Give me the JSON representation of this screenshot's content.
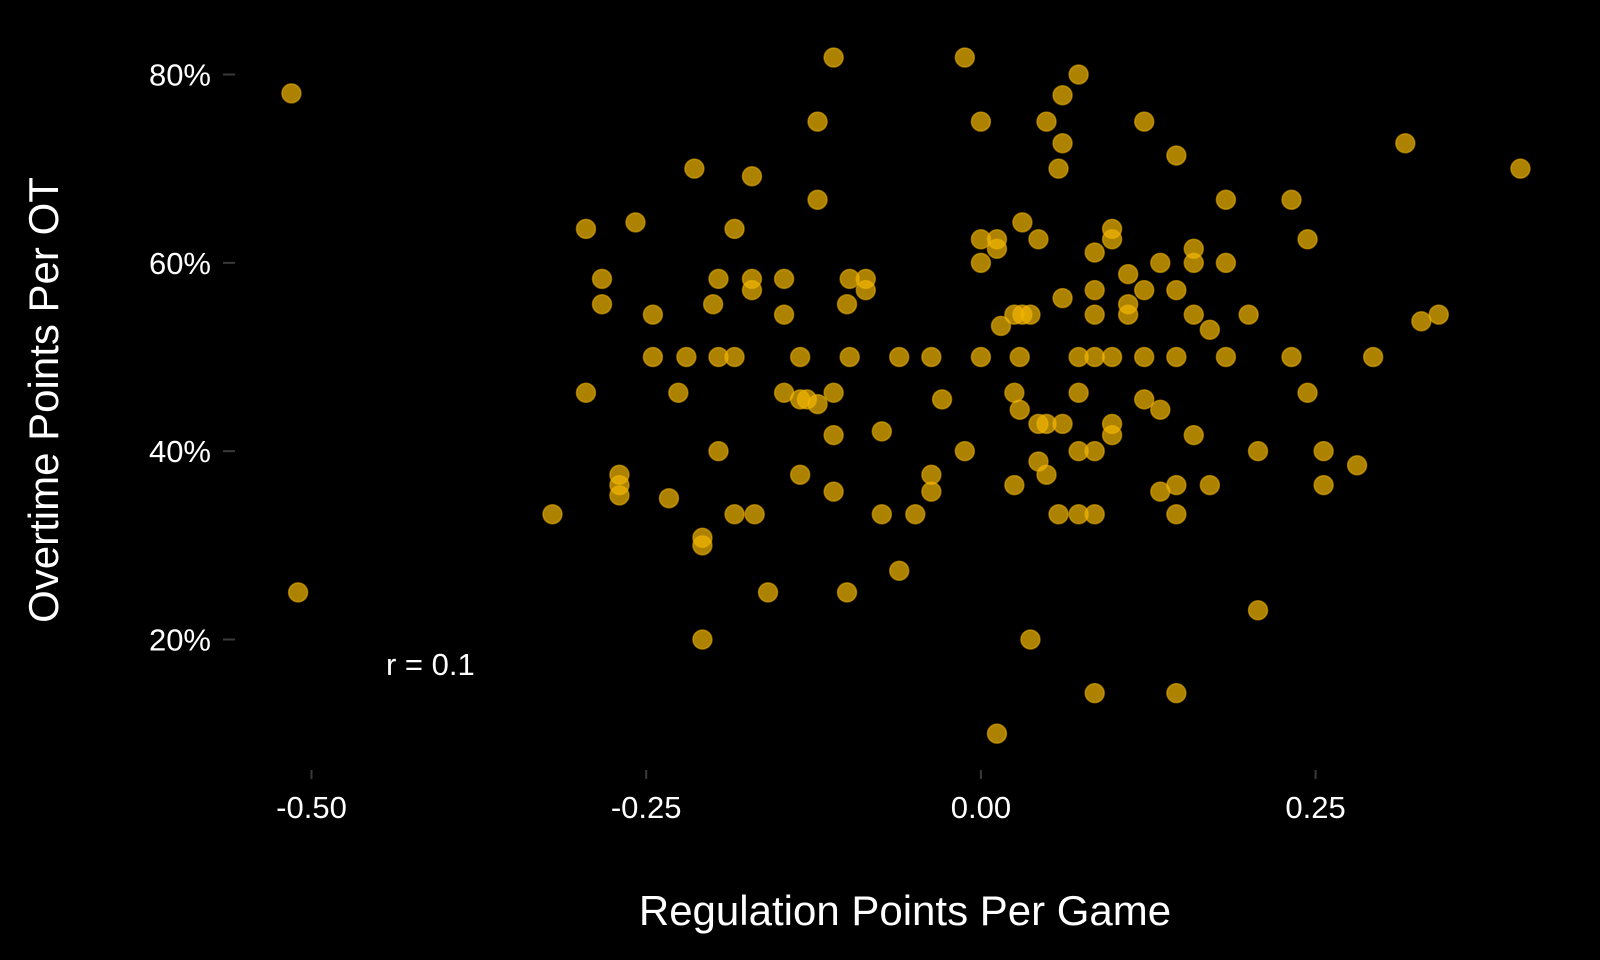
{
  "chart_data": {
    "type": "scatter",
    "xlabel": "Regulation Points Per Game",
    "ylabel": "Overtime Points Per OT",
    "xlim": [
      -0.55,
      0.45
    ],
    "ylim": [
      0.07,
      0.83
    ],
    "x_ticks": [
      -0.5,
      -0.25,
      0.0,
      0.25
    ],
    "x_tick_labels": [
      "-0.50",
      "-0.25",
      "0.00",
      "0.25"
    ],
    "y_ticks": [
      0.2,
      0.4,
      0.6,
      0.8
    ],
    "y_tick_labels": [
      "20%",
      "40%",
      "60%",
      "80%"
    ],
    "annotation": "r =  0.1",
    "point_color": "#f0b400",
    "background": "#000000",
    "points": [
      {
        "x": -0.515,
        "y": 0.78
      },
      {
        "x": -0.51,
        "y": 0.25
      },
      {
        "x": -0.32,
        "y": 0.333
      },
      {
        "x": -0.295,
        "y": 0.636
      },
      {
        "x": -0.295,
        "y": 0.462
      },
      {
        "x": -0.283,
        "y": 0.583
      },
      {
        "x": -0.283,
        "y": 0.556
      },
      {
        "x": -0.258,
        "y": 0.643
      },
      {
        "x": -0.27,
        "y": 0.375
      },
      {
        "x": -0.27,
        "y": 0.364
      },
      {
        "x": -0.27,
        "y": 0.353
      },
      {
        "x": -0.245,
        "y": 0.545
      },
      {
        "x": -0.245,
        "y": 0.5
      },
      {
        "x": -0.233,
        "y": 0.35
      },
      {
        "x": -0.22,
        "y": 0.5
      },
      {
        "x": -0.226,
        "y": 0.462
      },
      {
        "x": -0.214,
        "y": 0.7
      },
      {
        "x": -0.208,
        "y": 0.308
      },
      {
        "x": -0.208,
        "y": 0.3
      },
      {
        "x": -0.208,
        "y": 0.2
      },
      {
        "x": -0.2,
        "y": 0.556
      },
      {
        "x": -0.196,
        "y": 0.583
      },
      {
        "x": -0.196,
        "y": 0.5
      },
      {
        "x": -0.196,
        "y": 0.4
      },
      {
        "x": -0.184,
        "y": 0.636
      },
      {
        "x": -0.184,
        "y": 0.5
      },
      {
        "x": -0.184,
        "y": 0.333
      },
      {
        "x": -0.171,
        "y": 0.692
      },
      {
        "x": -0.171,
        "y": 0.583
      },
      {
        "x": -0.171,
        "y": 0.571
      },
      {
        "x": -0.169,
        "y": 0.333
      },
      {
        "x": -0.159,
        "y": 0.25
      },
      {
        "x": -0.147,
        "y": 0.583
      },
      {
        "x": -0.147,
        "y": 0.545
      },
      {
        "x": -0.147,
        "y": 0.462
      },
      {
        "x": -0.135,
        "y": 0.5
      },
      {
        "x": -0.135,
        "y": 0.455
      },
      {
        "x": -0.135,
        "y": 0.375
      },
      {
        "x": -0.13,
        "y": 0.455
      },
      {
        "x": -0.122,
        "y": 0.75
      },
      {
        "x": -0.122,
        "y": 0.667
      },
      {
        "x": -0.122,
        "y": 0.45
      },
      {
        "x": -0.11,
        "y": 0.818
      },
      {
        "x": -0.11,
        "y": 0.462
      },
      {
        "x": -0.11,
        "y": 0.417
      },
      {
        "x": -0.11,
        "y": 0.357
      },
      {
        "x": -0.1,
        "y": 0.556
      },
      {
        "x": -0.1,
        "y": 0.25
      },
      {
        "x": -0.098,
        "y": 0.583
      },
      {
        "x": -0.098,
        "y": 0.5
      },
      {
        "x": -0.086,
        "y": 0.583
      },
      {
        "x": -0.086,
        "y": 0.571
      },
      {
        "x": -0.074,
        "y": 0.421
      },
      {
        "x": -0.074,
        "y": 0.333
      },
      {
        "x": -0.061,
        "y": 0.5
      },
      {
        "x": -0.061,
        "y": 0.273
      },
      {
        "x": -0.049,
        "y": 0.333
      },
      {
        "x": -0.037,
        "y": 0.5
      },
      {
        "x": -0.037,
        "y": 0.375
      },
      {
        "x": -0.037,
        "y": 0.357
      },
      {
        "x": -0.029,
        "y": 0.455
      },
      {
        "x": -0.012,
        "y": 0.818
      },
      {
        "x": -0.012,
        "y": 0.4
      },
      {
        "x": 0.0,
        "y": 0.75
      },
      {
        "x": 0.0,
        "y": 0.625
      },
      {
        "x": 0.0,
        "y": 0.6
      },
      {
        "x": 0.0,
        "y": 0.5
      },
      {
        "x": 0.012,
        "y": 0.625
      },
      {
        "x": 0.012,
        "y": 0.615
      },
      {
        "x": 0.012,
        "y": 0.1
      },
      {
        "x": 0.015,
        "y": 0.533
      },
      {
        "x": 0.025,
        "y": 0.545
      },
      {
        "x": 0.025,
        "y": 0.462
      },
      {
        "x": 0.025,
        "y": 0.364
      },
      {
        "x": 0.029,
        "y": 0.5
      },
      {
        "x": 0.029,
        "y": 0.444
      },
      {
        "x": 0.031,
        "y": 0.643
      },
      {
        "x": 0.031,
        "y": 0.545
      },
      {
        "x": 0.037,
        "y": 0.545
      },
      {
        "x": 0.037,
        "y": 0.2
      },
      {
        "x": 0.043,
        "y": 0.625
      },
      {
        "x": 0.043,
        "y": 0.429
      },
      {
        "x": 0.043,
        "y": 0.389
      },
      {
        "x": 0.049,
        "y": 0.75
      },
      {
        "x": 0.049,
        "y": 0.429
      },
      {
        "x": 0.049,
        "y": 0.375
      },
      {
        "x": 0.058,
        "y": 0.7
      },
      {
        "x": 0.058,
        "y": 0.333
      },
      {
        "x": 0.061,
        "y": 0.778
      },
      {
        "x": 0.061,
        "y": 0.727
      },
      {
        "x": 0.061,
        "y": 0.5625
      },
      {
        "x": 0.061,
        "y": 0.429
      },
      {
        "x": 0.073,
        "y": 0.8
      },
      {
        "x": 0.073,
        "y": 0.5
      },
      {
        "x": 0.073,
        "y": 0.462
      },
      {
        "x": 0.073,
        "y": 0.4
      },
      {
        "x": 0.073,
        "y": 0.333
      },
      {
        "x": 0.085,
        "y": 0.611
      },
      {
        "x": 0.085,
        "y": 0.571
      },
      {
        "x": 0.085,
        "y": 0.545
      },
      {
        "x": 0.085,
        "y": 0.5
      },
      {
        "x": 0.085,
        "y": 0.4
      },
      {
        "x": 0.085,
        "y": 0.333
      },
      {
        "x": 0.085,
        "y": 0.143
      },
      {
        "x": 0.098,
        "y": 0.636
      },
      {
        "x": 0.098,
        "y": 0.625
      },
      {
        "x": 0.098,
        "y": 0.5
      },
      {
        "x": 0.098,
        "y": 0.429
      },
      {
        "x": 0.098,
        "y": 0.417
      },
      {
        "x": 0.11,
        "y": 0.588
      },
      {
        "x": 0.11,
        "y": 0.556
      },
      {
        "x": 0.11,
        "y": 0.545
      },
      {
        "x": 0.122,
        "y": 0.75
      },
      {
        "x": 0.122,
        "y": 0.571
      },
      {
        "x": 0.122,
        "y": 0.5
      },
      {
        "x": 0.122,
        "y": 0.455
      },
      {
        "x": 0.134,
        "y": 0.6
      },
      {
        "x": 0.134,
        "y": 0.444
      },
      {
        "x": 0.134,
        "y": 0.357
      },
      {
        "x": 0.146,
        "y": 0.714
      },
      {
        "x": 0.146,
        "y": 0.571
      },
      {
        "x": 0.146,
        "y": 0.5
      },
      {
        "x": 0.146,
        "y": 0.364
      },
      {
        "x": 0.146,
        "y": 0.333
      },
      {
        "x": 0.146,
        "y": 0.143
      },
      {
        "x": 0.159,
        "y": 0.615
      },
      {
        "x": 0.159,
        "y": 0.6
      },
      {
        "x": 0.159,
        "y": 0.545
      },
      {
        "x": 0.159,
        "y": 0.417
      },
      {
        "x": 0.171,
        "y": 0.529
      },
      {
        "x": 0.171,
        "y": 0.364
      },
      {
        "x": 0.183,
        "y": 0.667
      },
      {
        "x": 0.183,
        "y": 0.6
      },
      {
        "x": 0.183,
        "y": 0.5
      },
      {
        "x": 0.2,
        "y": 0.545
      },
      {
        "x": 0.207,
        "y": 0.4
      },
      {
        "x": 0.207,
        "y": 0.231
      },
      {
        "x": 0.232,
        "y": 0.667
      },
      {
        "x": 0.232,
        "y": 0.5
      },
      {
        "x": 0.244,
        "y": 0.625
      },
      {
        "x": 0.244,
        "y": 0.462
      },
      {
        "x": 0.256,
        "y": 0.4
      },
      {
        "x": 0.256,
        "y": 0.364
      },
      {
        "x": 0.281,
        "y": 0.385
      },
      {
        "x": 0.293,
        "y": 0.5
      },
      {
        "x": 0.317,
        "y": 0.727
      },
      {
        "x": 0.329,
        "y": 0.538
      },
      {
        "x": 0.342,
        "y": 0.545
      },
      {
        "x": 0.403,
        "y": 0.7
      }
    ]
  }
}
